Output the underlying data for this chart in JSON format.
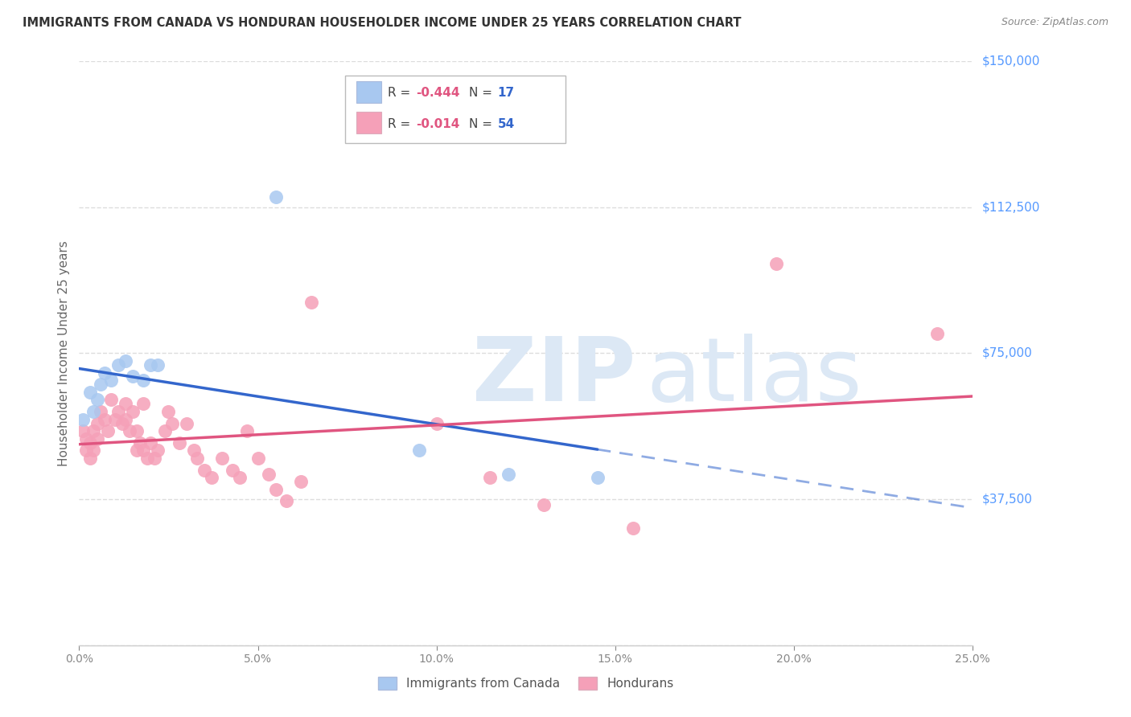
{
  "title": "IMMIGRANTS FROM CANADA VS HONDURAN HOUSEHOLDER INCOME UNDER 25 YEARS CORRELATION CHART",
  "source": "Source: ZipAtlas.com",
  "ylabel": "Householder Income Under 25 years",
  "y_ticks": [
    0,
    37500,
    75000,
    112500,
    150000
  ],
  "y_tick_labels": [
    "",
    "$37,500",
    "$75,000",
    "$112,500",
    "$150,000"
  ],
  "x_min": 0.0,
  "x_max": 0.25,
  "y_min": 0,
  "y_max": 150000,
  "canada_color": "#a8c8f0",
  "honduran_color": "#f5a0b8",
  "canada_line_color": "#3366cc",
  "honduran_line_color": "#e05580",
  "background_color": "#ffffff",
  "grid_color": "#dddddd",
  "canada_x": [
    0.001,
    0.003,
    0.004,
    0.005,
    0.006,
    0.007,
    0.009,
    0.011,
    0.013,
    0.015,
    0.018,
    0.02,
    0.022,
    0.055,
    0.095,
    0.12,
    0.145
  ],
  "canada_y": [
    58000,
    65000,
    60000,
    63000,
    67000,
    70000,
    68000,
    72000,
    73000,
    69000,
    68000,
    72000,
    72000,
    115000,
    50000,
    44000,
    43000
  ],
  "honduran_x": [
    0.001,
    0.002,
    0.002,
    0.003,
    0.003,
    0.004,
    0.004,
    0.005,
    0.005,
    0.006,
    0.007,
    0.008,
    0.009,
    0.01,
    0.011,
    0.012,
    0.013,
    0.013,
    0.014,
    0.015,
    0.016,
    0.016,
    0.017,
    0.018,
    0.018,
    0.019,
    0.02,
    0.021,
    0.022,
    0.024,
    0.025,
    0.026,
    0.028,
    0.03,
    0.032,
    0.033,
    0.035,
    0.037,
    0.04,
    0.043,
    0.045,
    0.047,
    0.05,
    0.053,
    0.055,
    0.058,
    0.062,
    0.065,
    0.1,
    0.115,
    0.13,
    0.155,
    0.195,
    0.24
  ],
  "honduran_y": [
    55000,
    50000,
    53000,
    52000,
    48000,
    55000,
    50000,
    57000,
    53000,
    60000,
    58000,
    55000,
    63000,
    58000,
    60000,
    57000,
    58000,
    62000,
    55000,
    60000,
    55000,
    50000,
    52000,
    62000,
    50000,
    48000,
    52000,
    48000,
    50000,
    55000,
    60000,
    57000,
    52000,
    57000,
    50000,
    48000,
    45000,
    43000,
    48000,
    45000,
    43000,
    55000,
    48000,
    44000,
    40000,
    37000,
    42000,
    88000,
    57000,
    43000,
    36000,
    30000,
    98000,
    80000
  ]
}
